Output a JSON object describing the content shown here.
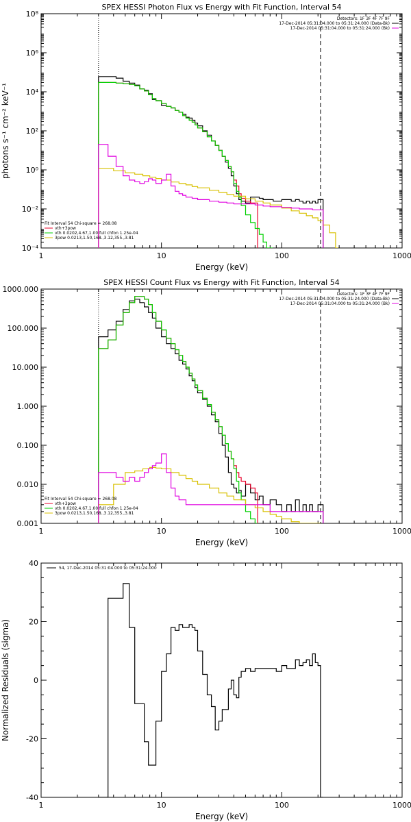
{
  "chart_data": [
    {
      "type": "line",
      "title": "SPEX HESSI Photon Flux vs Energy with Fit Function, Interval 54",
      "xlabel": "Energy (keV)",
      "ylabel": "photons s⁻¹ cm⁻² keV⁻¹",
      "xscale": "log",
      "yscale": "log",
      "xlim": [
        1,
        1000
      ],
      "ylim": [
        0.0001,
        100000000
      ],
      "xticks": [
        "1",
        "10",
        "100",
        "1000"
      ],
      "yticks": [
        "10⁻⁴",
        "10⁻²",
        "10⁰",
        "10²",
        "10⁴",
        "10⁶",
        "10⁸"
      ],
      "legend_top": [
        "Detectors: 1F 3F 4F 7F 9F",
        "17-Dec-2014 05:31:04.000 to 05:31:24.000 (Data-Bk)",
        "17-Dec-2014 05:31:04.000 to 05:31:24.000 (Bk)"
      ],
      "legend_bottom": [
        "Fit Interval 54   Chi-square = 268.08",
        "vth+3pow",
        "vth 0.0202,4.67,1.00  full chfon 1.25e-04",
        "3pow 0.0213,1.50,168.,3.12,355.,3.81"
      ],
      "vlines": [
        3.0,
        210
      ],
      "series": [
        {
          "name": "17-Dec-2014 05:31:04.000 to 05:31:24.000 (Data-Bk)",
          "color": "#000000",
          "x": [
            3,
            3.6,
            4.2,
            4.8,
            5.4,
            6,
            6.6,
            7.2,
            7.8,
            8.4,
            9,
            10,
            11,
            12,
            13,
            14,
            15,
            16,
            17,
            18,
            19,
            20,
            22,
            24,
            26,
            28,
            30,
            32,
            34,
            36,
            38,
            40,
            42,
            44,
            46,
            50,
            55,
            60,
            65,
            70,
            75,
            80,
            85,
            90,
            95,
            100,
            110,
            120,
            130,
            140,
            150,
            160,
            170,
            180,
            190,
            200,
            210
          ],
          "y": [
            60000,
            60000,
            50000,
            35000,
            28000,
            22000,
            14000,
            12000,
            8000,
            4000,
            3500,
            2000,
            1800,
            1500,
            1100,
            900,
            700,
            500,
            450,
            350,
            250,
            180,
            100,
            60,
            30,
            18,
            10,
            5,
            2.5,
            1.2,
            0.5,
            0.15,
            0.06,
            0.03,
            0.025,
            0.02,
            0.04,
            0.04,
            0.035,
            0.03,
            0.03,
            0.03,
            0.025,
            0.025,
            0.025,
            0.03,
            0.03,
            0.025,
            0.03,
            0.025,
            0.02,
            0.025,
            0.02,
            0.025,
            0.02,
            0.03,
            0.03
          ]
        },
        {
          "name": "vth+3pow",
          "color": "#e8002a",
          "x": [
            3,
            3.6,
            4.2,
            4.8,
            5.4,
            6,
            6.6,
            7.2,
            7.8,
            8.4,
            9,
            10,
            11,
            12,
            13,
            14,
            15,
            16,
            17,
            18,
            19,
            20,
            22,
            24,
            26,
            28,
            30,
            32,
            34,
            36,
            38,
            40,
            42,
            44,
            46,
            50,
            55,
            60
          ],
          "y": [
            30000,
            30000,
            28000,
            26000,
            24000,
            20000,
            14000,
            11000,
            7000,
            4500,
            3500,
            2500,
            1800,
            1500,
            1100,
            900,
            600,
            450,
            350,
            280,
            200,
            140,
            90,
            50,
            30,
            18,
            10,
            5,
            3,
            1.5,
            0.8,
            0.3,
            0.15,
            0.06,
            0.035,
            0.025,
            0.02,
            0.02
          ]
        },
        {
          "name": "vth 0.0202,4.67,1.00  full chfon 1.25e-04",
          "color": "#00d000",
          "x": [
            3,
            3.6,
            4.2,
            4.8,
            5.4,
            6,
            6.6,
            7.2,
            7.8,
            8.4,
            9,
            10,
            11,
            12,
            13,
            14,
            15,
            16,
            17,
            18,
            19,
            20,
            22,
            24,
            26,
            28,
            30,
            32,
            34,
            36,
            38,
            40,
            42,
            44,
            46,
            50,
            55,
            60,
            65,
            70,
            75,
            80
          ],
          "y": [
            30000,
            30000,
            28000,
            26000,
            24000,
            20000,
            14000,
            11000,
            7000,
            4500,
            3500,
            2500,
            1800,
            1500,
            1100,
            900,
            600,
            450,
            350,
            280,
            200,
            140,
            90,
            50,
            30,
            18,
            10,
            5,
            3,
            1.5,
            0.8,
            0.2,
            0.08,
            0.04,
            0.015,
            0.005,
            0.002,
            0.001,
            0.0005,
            0.0002,
            0.0001,
            0.0001
          ]
        },
        {
          "name": "3pow 0.0213,1.50,168.,3.12,355.,3.81",
          "color": "#d8c000",
          "x": [
            3,
            4,
            5,
            6,
            7,
            8,
            9,
            10,
            12,
            14,
            16,
            18,
            20,
            25,
            30,
            35,
            40,
            50,
            60,
            70,
            80,
            100,
            120,
            140,
            160,
            180,
            200,
            220,
            250,
            280
          ],
          "y": [
            1.2,
            0.9,
            0.7,
            0.6,
            0.5,
            0.42,
            0.36,
            0.3,
            0.24,
            0.2,
            0.17,
            0.14,
            0.12,
            0.09,
            0.07,
            0.055,
            0.045,
            0.033,
            0.025,
            0.02,
            0.016,
            0.011,
            0.008,
            0.006,
            0.0045,
            0.0035,
            0.0025,
            0.0015,
            0.0006,
            0.0001
          ]
        },
        {
          "name": "17-Dec-2014 05:31:04.000 to 05:31:24.000 (Bk)",
          "color": "#e000e0",
          "x": [
            3,
            3.6,
            4.2,
            4.8,
            5.4,
            6,
            6.6,
            7.2,
            7.8,
            8.4,
            9,
            10,
            11,
            12,
            13,
            14,
            15,
            16,
            18,
            20,
            25,
            30,
            35,
            40,
            50,
            60,
            70,
            80,
            100,
            120,
            140,
            160,
            180,
            200,
            210
          ],
          "y": [
            20,
            5,
            1.5,
            0.5,
            0.3,
            0.25,
            0.2,
            0.25,
            0.35,
            0.3,
            0.2,
            0.3,
            0.6,
            0.15,
            0.08,
            0.06,
            0.05,
            0.04,
            0.035,
            0.03,
            0.025,
            0.022,
            0.02,
            0.018,
            0.018,
            0.016,
            0.014,
            0.013,
            0.012,
            0.011,
            0.01,
            0.01,
            0.009,
            0.009,
            0.009
          ]
        }
      ]
    },
    {
      "type": "line",
      "title": "SPEX HESSI Count Flux vs Energy with Fit Function, Interval 54",
      "xlabel": "Energy (keV)",
      "ylabel": "",
      "xscale": "log",
      "yscale": "log",
      "xlim": [
        1,
        1000
      ],
      "ylim": [
        0.001,
        1000
      ],
      "xticks": [
        "1",
        "10",
        "100",
        "1000"
      ],
      "yticks": [
        "0.001",
        "0.010",
        "0.100",
        "1.000",
        "10.000",
        "100.000",
        "1000.000"
      ],
      "legend_top": [
        "Detectors: 1F 3F 4F 7F 9F",
        "17-Dec-2014 05:31:04.000 to 05:31:24.000 (Data-Bk)",
        "17-Dec-2014 05:31:04.000 to 05:31:24.000 (Bk)"
      ],
      "legend_bottom": [
        "Fit Interval 54   Chi-square = 268.08",
        "vth+3pow",
        "vth 0.0202,4.67,1.00  full chfon 1.25e-04",
        "3pow 0.0213,1.50,168.,3.12,355.,3.81"
      ],
      "vlines": [
        3.0,
        210
      ],
      "series": [
        {
          "name": "17-Dec-2014 05:31:04.000 to 05:31:24.000 (Data-Bk)",
          "color": "#000000",
          "x": [
            3,
            3.6,
            4.2,
            4.8,
            5.4,
            6,
            6.6,
            7.2,
            7.8,
            8.4,
            9,
            10,
            11,
            12,
            13,
            14,
            15,
            16,
            17,
            18,
            19,
            20,
            22,
            24,
            26,
            28,
            30,
            32,
            34,
            36,
            38,
            40,
            42,
            44,
            46,
            50,
            55,
            60,
            65,
            70,
            80,
            90,
            100,
            110,
            120,
            130,
            140,
            150,
            160,
            170,
            180,
            190,
            200,
            210
          ],
          "y": [
            60,
            90,
            150,
            300,
            500,
            550,
            450,
            350,
            250,
            180,
            100,
            60,
            40,
            30,
            22,
            15,
            12,
            9,
            6,
            4.5,
            3,
            2.2,
            1.5,
            1,
            0.6,
            0.4,
            0.2,
            0.1,
            0.05,
            0.02,
            0.01,
            0.008,
            0.006,
            0.007,
            0.005,
            0.01,
            0.006,
            0.004,
            0.005,
            0.003,
            0.004,
            0.003,
            0.002,
            0.003,
            0.002,
            0.004,
            0.002,
            0.003,
            0.002,
            0.003,
            0.002,
            0.002,
            0.003,
            0.003
          ]
        },
        {
          "name": "vth+3pow",
          "color": "#e8002a",
          "x": [
            3,
            3.6,
            4.2,
            4.8,
            5.4,
            6,
            6.6,
            7.2,
            7.8,
            8.4,
            9,
            10,
            11,
            12,
            13,
            14,
            15,
            16,
            17,
            18,
            19,
            20,
            22,
            24,
            26,
            28,
            30,
            32,
            34,
            36,
            38,
            40,
            42,
            44,
            46,
            50,
            55,
            60
          ],
          "y": [
            30,
            50,
            120,
            250,
            450,
            650,
            650,
            550,
            400,
            250,
            150,
            90,
            55,
            40,
            28,
            20,
            14,
            10,
            7,
            5,
            3.5,
            2.5,
            1.6,
            1.1,
            0.7,
            0.45,
            0.3,
            0.18,
            0.11,
            0.07,
            0.045,
            0.03,
            0.02,
            0.015,
            0.012,
            0.01,
            0.008,
            0.006
          ]
        },
        {
          "name": "vth 0.0202,4.67,1.00  full chfon 1.25e-04",
          "color": "#00d000",
          "x": [
            3,
            3.6,
            4.2,
            4.8,
            5.4,
            6,
            6.6,
            7.2,
            7.8,
            8.4,
            9,
            10,
            11,
            12,
            13,
            14,
            15,
            16,
            17,
            18,
            19,
            20,
            22,
            24,
            26,
            28,
            30,
            32,
            34,
            36,
            38,
            40,
            42,
            44,
            46,
            50,
            55,
            60
          ],
          "y": [
            30,
            50,
            120,
            250,
            450,
            650,
            650,
            550,
            400,
            250,
            150,
            90,
            55,
            40,
            28,
            20,
            14,
            10,
            7,
            5,
            3.5,
            2.5,
            1.6,
            1.1,
            0.7,
            0.45,
            0.3,
            0.18,
            0.11,
            0.07,
            0.045,
            0.025,
            0.012,
            0.006,
            0.004,
            0.002,
            0.0013,
            0.001
          ]
        },
        {
          "name": "3pow 0.0213,1.50,168.,3.12,355.,3.81",
          "color": "#d8c000",
          "x": [
            3,
            4,
            5,
            6,
            7,
            8,
            9,
            10,
            12,
            14,
            16,
            18,
            20,
            25,
            30,
            35,
            40,
            50,
            60,
            70,
            80,
            90,
            100,
            120,
            140,
            160,
            180,
            200
          ],
          "y": [
            0.003,
            0.01,
            0.02,
            0.022,
            0.025,
            0.027,
            0.026,
            0.025,
            0.02,
            0.017,
            0.014,
            0.012,
            0.01,
            0.008,
            0.006,
            0.005,
            0.004,
            0.003,
            0.0025,
            0.002,
            0.0017,
            0.0015,
            0.0013,
            0.0011,
            0.001,
            0.001,
            0.001,
            0.001
          ]
        },
        {
          "name": "17-Dec-2014 05:31:04.000 to 05:31:24.000 (Bk)",
          "color": "#e000e0",
          "x": [
            3,
            3.6,
            4.2,
            4.8,
            5.4,
            6,
            6.6,
            7.2,
            7.8,
            8.4,
            9,
            10,
            11,
            12,
            13,
            14,
            15,
            16,
            18,
            20,
            25,
            30,
            35,
            40,
            50,
            60,
            70,
            80,
            90,
            100,
            120,
            140,
            160,
            180,
            200,
            210
          ],
          "y": [
            0.02,
            0.02,
            0.015,
            0.012,
            0.015,
            0.012,
            0.015,
            0.02,
            0.025,
            0.03,
            0.035,
            0.06,
            0.02,
            0.008,
            0.005,
            0.004,
            0.004,
            0.003,
            0.003,
            0.003,
            0.003,
            0.003,
            0.003,
            0.003,
            0.003,
            0.003,
            0.003,
            0.002,
            0.002,
            0.002,
            0.002,
            0.002,
            0.002,
            0.002,
            0.002,
            0.002
          ]
        }
      ]
    },
    {
      "type": "line",
      "title": "",
      "xlabel": "Energy (keV)",
      "ylabel": "Normalized Residuals (sigma)",
      "xscale": "log",
      "yscale": "linear",
      "xlim": [
        1,
        1000
      ],
      "ylim": [
        -40,
        40
      ],
      "xticks": [
        "1",
        "10",
        "100",
        "1000"
      ],
      "yticks": [
        "-40",
        "-20",
        "0",
        "20",
        "40"
      ],
      "legend_top": [
        "54, 17-Dec-2014 05:31:04.000 to 05:31:24.000"
      ],
      "legend_bottom": [],
      "vlines": [],
      "series": [
        {
          "name": "54, 17-Dec-2014 05:31:04.000 to 05:31:24.000",
          "color": "#000000",
          "x": [
            3,
            3.6,
            4.2,
            4.8,
            5.4,
            6,
            6.6,
            7.2,
            7.8,
            8.4,
            9,
            10,
            11,
            12,
            13,
            14,
            15,
            16,
            17,
            18,
            19,
            20,
            22,
            24,
            26,
            28,
            30,
            32,
            34,
            36,
            38,
            40,
            42,
            44,
            46,
            50,
            55,
            60,
            70,
            80,
            90,
            100,
            110,
            120,
            130,
            140,
            150,
            160,
            170,
            180,
            190,
            200,
            210
          ],
          "y": [
            -40,
            28,
            28,
            33,
            18,
            -8,
            -8,
            -21,
            -29,
            -29,
            -14,
            3,
            9,
            18,
            17,
            19,
            18,
            18,
            19,
            18,
            17,
            10,
            2,
            -5,
            -9,
            -17,
            -14,
            -10,
            -10,
            -3,
            0,
            -5,
            -6,
            1,
            3,
            4,
            3,
            4,
            4,
            4,
            3,
            5,
            4,
            4,
            7,
            5,
            6,
            7,
            5,
            9,
            6,
            5,
            -40
          ]
        }
      ]
    }
  ]
}
